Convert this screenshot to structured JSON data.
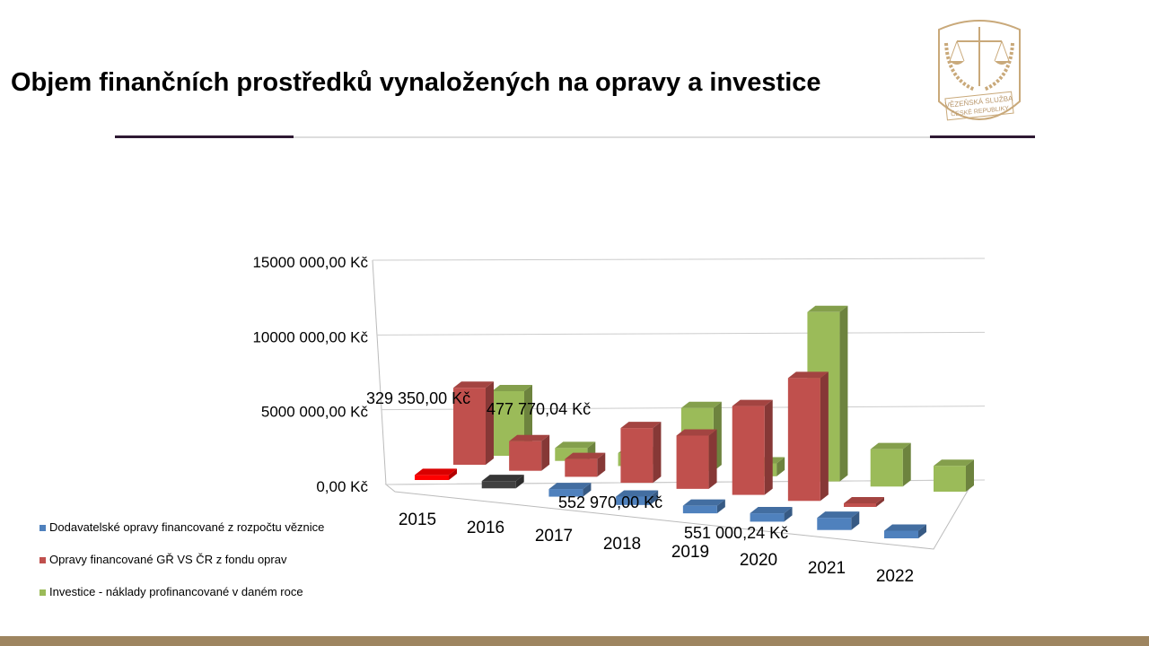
{
  "title": "Objem finančních prostředků vynaložených na opravy a investice",
  "logo": {
    "text": "VĚZEŇSKÁ SLUŽBA ČESKÉ REPUBLIKY"
  },
  "chart_data": {
    "type": "bar",
    "subtype": "3d-clustered-column",
    "categories": [
      "2015",
      "2016",
      "2017",
      "2018",
      "2019",
      "2020",
      "2021",
      "2022"
    ],
    "yticks": [
      {
        "v": 0,
        "label": "0,00 Kč"
      },
      {
        "v": 5000000,
        "label": "5000 000,00 Kč"
      },
      {
        "v": 10000000,
        "label": "10000 000,00 Kč"
      },
      {
        "v": 15000000,
        "label": "15000 000,00 Kč"
      }
    ],
    "ylim": [
      0,
      15000000
    ],
    "grid": true,
    "legend_position": "bottom-left",
    "series": [
      {
        "name": "Dodavatelské opravy financované z rozpočtu věznice",
        "color": "#4f81bd",
        "values": [
          329350,
          477770.04,
          500000,
          552970,
          500000,
          551000.24,
          800000,
          500000
        ],
        "point_colors": {
          "0": "#ff0000",
          "1": "#404040"
        }
      },
      {
        "name": "Opravy financované GŘ VS ČR z fondu oprav",
        "color": "#c0504d",
        "values": [
          5200000,
          2000000,
          1200000,
          3700000,
          3600000,
          6000000,
          8300000,
          100000
        ]
      },
      {
        "name": "Investice - náklady profinancované v daném roce",
        "color": "#9bbb59",
        "values": [
          4500000,
          900000,
          900000,
          4400000,
          900000,
          11800000,
          2600000,
          1800000
        ]
      }
    ],
    "data_labels": [
      {
        "text": "329 350,00 Kč"
      },
      {
        "text": "477 770,04 Kč"
      },
      {
        "text": "552 970,00 Kč"
      },
      {
        "text": "551 000,24 Kč"
      }
    ]
  }
}
